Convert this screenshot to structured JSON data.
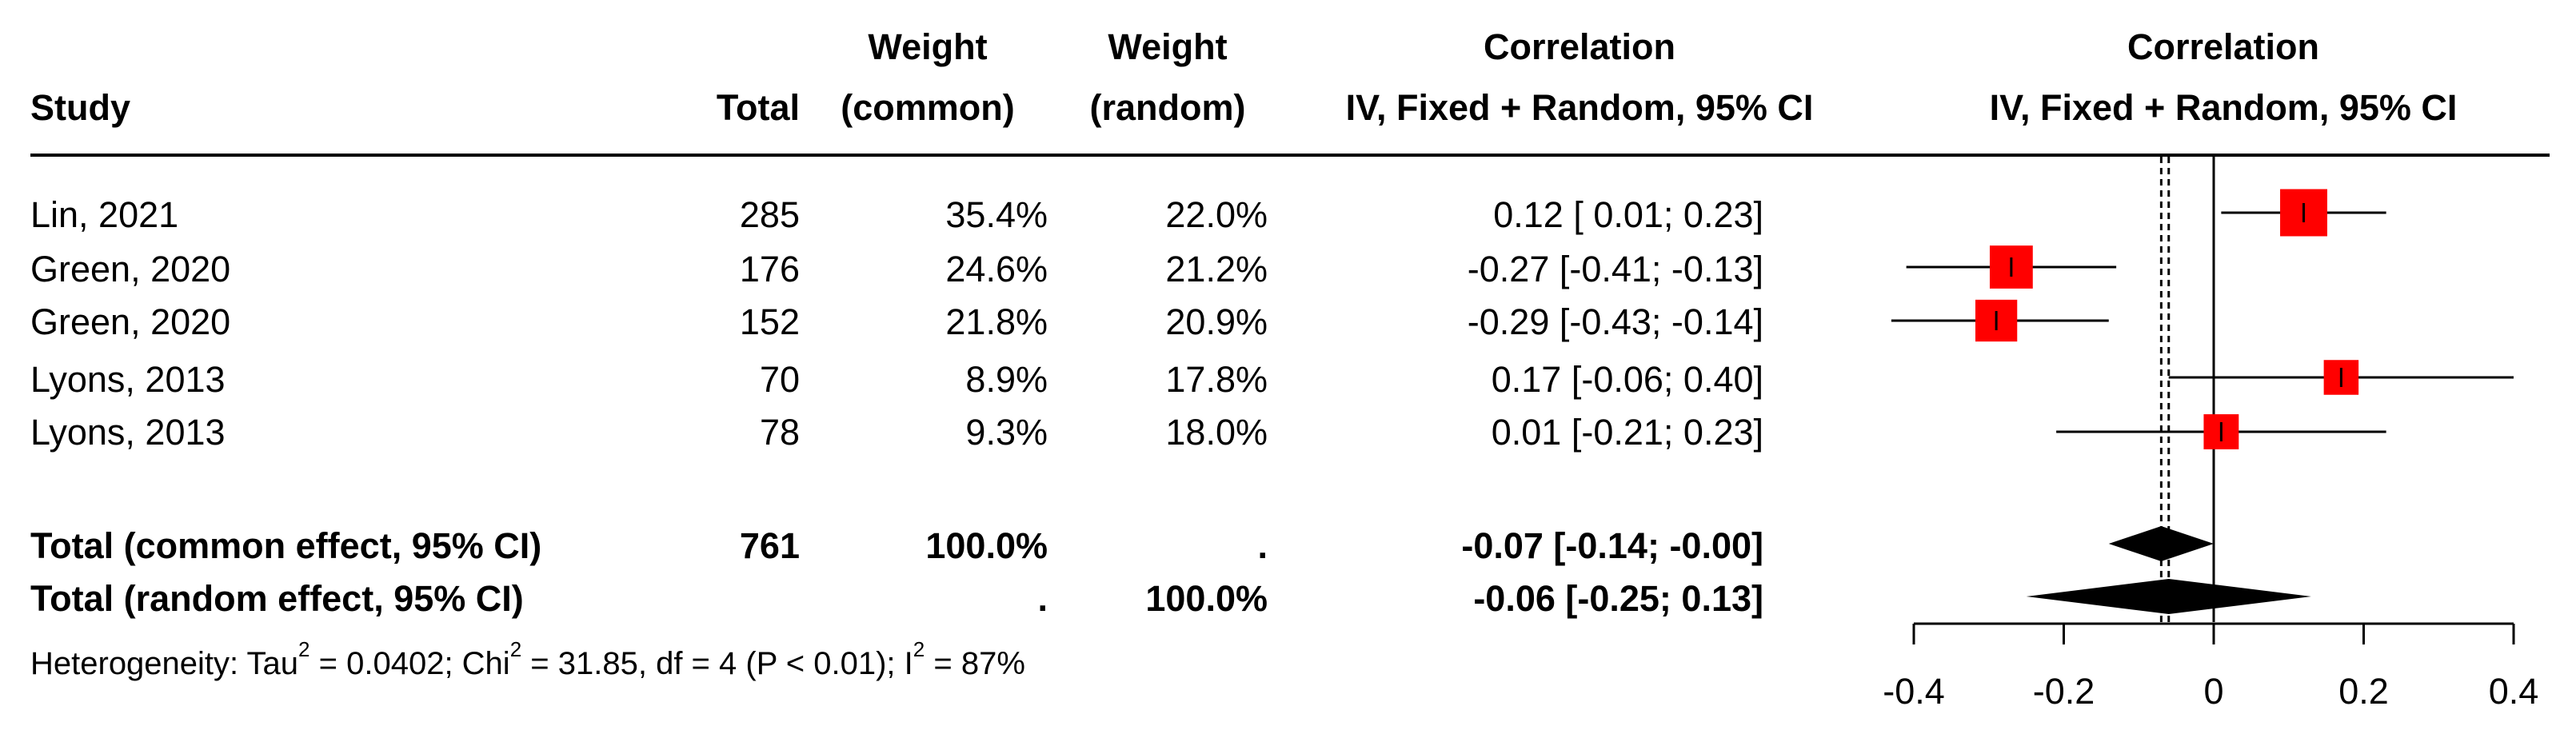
{
  "header": {
    "study": "Study",
    "total": "Total",
    "weight_common_l1": "Weight",
    "weight_common_l2": "(common)",
    "weight_random_l1": "Weight",
    "weight_random_l2": "(random)",
    "corr_l1": "Correlation",
    "corr_l2": "IV, Fixed + Random, 95% CI",
    "plot_l1": "Correlation",
    "plot_l2": "IV, Fixed + Random, 95% CI"
  },
  "rows": [
    {
      "study": "Lin, 2021",
      "total": "285",
      "w_common": "35.4%",
      "w_random": "22.0%",
      "ci": "0.12 [ 0.01;  0.23]"
    },
    {
      "study": "Green, 2020",
      "total": "176",
      "w_common": "24.6%",
      "w_random": "21.2%",
      "ci": "-0.27 [-0.41; -0.13]"
    },
    {
      "study": "Green, 2020",
      "total": "152",
      "w_common": "21.8%",
      "w_random": "20.9%",
      "ci": "-0.29 [-0.43; -0.14]"
    },
    {
      "study": "Lyons, 2013",
      "total": "70",
      "w_common": "8.9%",
      "w_random": "17.8%",
      "ci": "0.17 [-0.06;  0.40]"
    },
    {
      "study": "Lyons, 2013",
      "total": "78",
      "w_common": "9.3%",
      "w_random": "18.0%",
      "ci": "0.01 [-0.21;  0.23]"
    }
  ],
  "totals": [
    {
      "label": "Total (common effect, 95% CI)",
      "total": "761",
      "w_common": "100.0%",
      "w_random": ".",
      "ci": "-0.07 [-0.14; -0.00]"
    },
    {
      "label": "Total (random effect, 95% CI)",
      "total": "",
      "w_common": ".",
      "w_random": "100.0%",
      "ci": "-0.06 [-0.25;  0.13]"
    }
  ],
  "heterogeneity": {
    "tau_prefix": "Heterogeneity: Tau",
    "tau_sup": "2",
    "tau_val": " = 0.0402; Chi",
    "chi_sup": "2",
    "chi_val": " = 31.85, df = 4 (P < 0.01); I",
    "i_sup": "2",
    "i_val": " = 87%"
  },
  "chart_data": {
    "type": "forest",
    "xlim": [
      -0.4,
      0.4
    ],
    "x_ticks": [
      -0.4,
      -0.2,
      0,
      0.2,
      0.4
    ],
    "x_tick_labels": [
      "-0.4",
      "-0.2",
      "0",
      "0.2",
      "0.4"
    ],
    "null_line": 0,
    "studies": [
      {
        "estimate": 0.12,
        "lower": 0.01,
        "upper": 0.23,
        "weight_common": 35.4
      },
      {
        "estimate": -0.27,
        "lower": -0.41,
        "upper": -0.13,
        "weight_common": 24.6
      },
      {
        "estimate": -0.29,
        "lower": -0.43,
        "upper": -0.14,
        "weight_common": 21.8
      },
      {
        "estimate": 0.17,
        "lower": -0.06,
        "upper": 0.4,
        "weight_common": 8.9
      },
      {
        "estimate": 0.01,
        "lower": -0.21,
        "upper": 0.23,
        "weight_common": 9.3
      }
    ],
    "common": {
      "estimate": -0.07,
      "lower": -0.14,
      "upper": -0.0
    },
    "random": {
      "estimate": -0.06,
      "lower": -0.25,
      "upper": 0.13
    },
    "colors": {
      "square": "#ff0000",
      "diamond": "#000000"
    }
  }
}
